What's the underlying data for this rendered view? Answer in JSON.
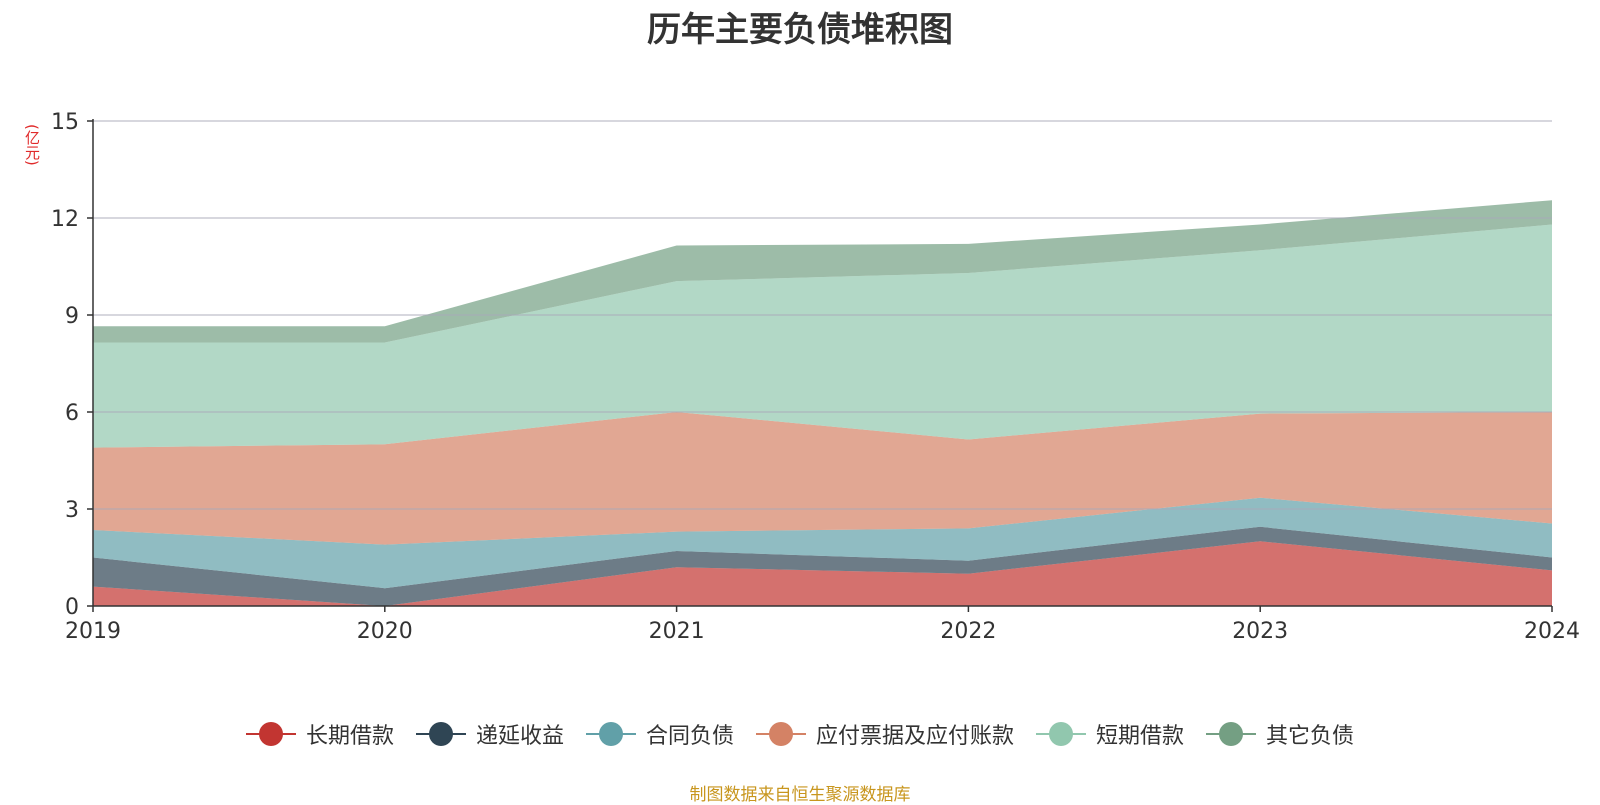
{
  "title": "历年主要负债堆积图",
  "unit_label": "(亿元)",
  "source": "制图数据来自恒生聚源数据库",
  "chart_data": {
    "type": "area",
    "stacked": true,
    "title": "历年主要负债堆积图",
    "ylabel": "(亿元)",
    "ylim": [
      0,
      15
    ],
    "yticks": [
      0,
      3,
      6,
      9,
      12,
      15
    ],
    "categories": [
      "2019",
      "2020",
      "2021",
      "2022",
      "2023",
      "2024"
    ],
    "grid": true,
    "legend_position": "bottom",
    "series": [
      {
        "name": "长期借款",
        "color": "#c23531",
        "values": [
          0.6,
          0.0,
          1.2,
          1.0,
          2.0,
          1.1
        ]
      },
      {
        "name": "递延收益",
        "color": "#2f4554",
        "values": [
          0.9,
          0.55,
          0.5,
          0.4,
          0.45,
          0.4
        ]
      },
      {
        "name": "合同负债",
        "color": "#61a0a8",
        "values": [
          0.85,
          1.35,
          0.6,
          1.0,
          0.9,
          1.05
        ]
      },
      {
        "name": "应付票据及应付账款",
        "color": "#d48265",
        "values": [
          2.55,
          3.1,
          3.7,
          2.75,
          2.6,
          3.45
        ]
      },
      {
        "name": "短期借款",
        "color": "#91c7ae",
        "values": [
          3.25,
          3.15,
          4.05,
          5.15,
          5.05,
          5.8
        ]
      },
      {
        "name": "其它负债",
        "color": "#749f83",
        "values": [
          0.5,
          0.5,
          1.1,
          0.9,
          0.8,
          0.75
        ]
      }
    ]
  }
}
